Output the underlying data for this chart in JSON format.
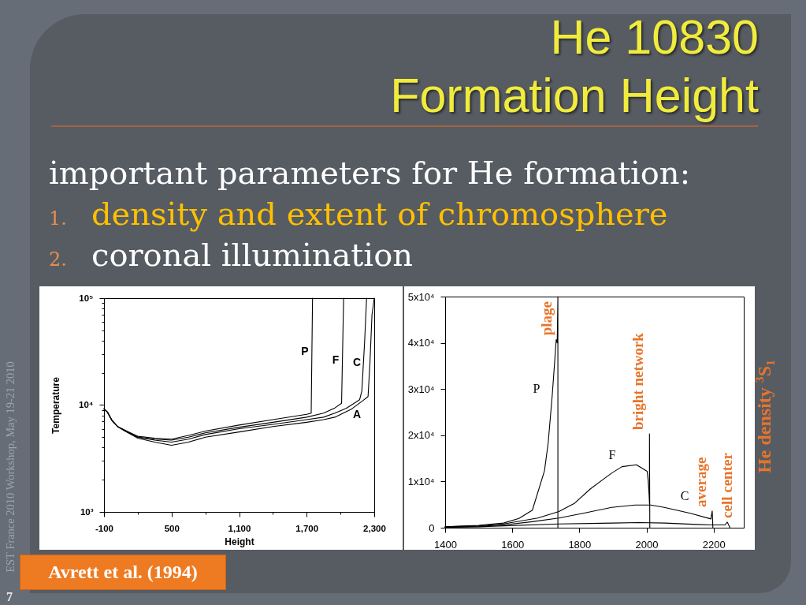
{
  "chart_data": [
    {
      "type": "other",
      "title": "He 10830 Formation Height",
      "annotations": [
        "important parameters for He formation:",
        "1. density and extent of chromosphere",
        "2. coronal illumination",
        "Avrett et al. (1994)",
        "EST France 2010 Workshop, May 19-21 2010",
        "7"
      ]
    },
    {
      "type": "line",
      "xlabel": "Height",
      "ylabel": "Temperature",
      "log": "y",
      "xlim": [
        -100,
        2300
      ],
      "ylim": [
        1000,
        100000
      ],
      "xticks": [
        -100,
        {
          "value": 200,
          "label": null
        },
        500,
        {
          "value": 800,
          "label": null
        },
        {
          "value": 1100,
          "label": "1,100"
        },
        {
          "value": 1400,
          "label": null
        },
        {
          "value": 1700,
          "label": "1,700"
        },
        {
          "value": 2000,
          "label": null
        },
        {
          "value": 2300,
          "label": "2,300"
        }
      ],
      "yticks": [
        {
          "value": 1000,
          "label": "10³"
        },
        {
          "value": 2000,
          "label": null
        },
        {
          "value": 3000,
          "label": null
        },
        {
          "value": 4000,
          "label": null
        },
        {
          "value": 5000,
          "label": null
        },
        {
          "value": 6000,
          "label": null
        },
        {
          "value": 7000,
          "label": null
        },
        {
          "value": 8000,
          "label": null
        },
        {
          "value": 9000,
          "label": null
        },
        {
          "value": 10000,
          "label": "10⁴"
        },
        {
          "value": 20000,
          "label": null
        },
        {
          "value": 30000,
          "label": null
        },
        {
          "value": 40000,
          "label": null
        },
        {
          "value": 50000,
          "label": null
        },
        {
          "value": 60000,
          "label": null
        },
        {
          "value": 70000,
          "label": null
        },
        {
          "value": 80000,
          "label": null
        },
        {
          "value": 90000,
          "label": null
        },
        {
          "value": 100000,
          "label": "10⁵"
        }
      ],
      "series": [
        {
          "name": "P",
          "color": "#000000",
          "x": [
            -100,
            -70,
            -30,
            20,
            100,
            200,
            350,
            500,
            650,
            800,
            1100,
            1400,
            1700,
            1740,
            1752
          ],
          "values": [
            9200,
            8600,
            7200,
            6300,
            5700,
            5100,
            4900,
            4800,
            5200,
            5700,
            6500,
            7300,
            8200,
            8400,
            100000
          ]
        },
        {
          "name": "F",
          "color": "#000000",
          "x": [
            -100,
            -70,
            -30,
            20,
            100,
            200,
            350,
            500,
            650,
            800,
            1100,
            1400,
            1700,
            1850,
            1950,
            2010,
            2028
          ],
          "values": [
            9200,
            8600,
            7200,
            6300,
            5700,
            5000,
            4800,
            4700,
            5000,
            5500,
            6200,
            6900,
            7700,
            8400,
            9400,
            10400,
            100000
          ]
        },
        {
          "name": "C",
          "color": "#000000",
          "x": [
            -100,
            -70,
            -30,
            20,
            100,
            200,
            350,
            500,
            650,
            800,
            1100,
            1400,
            1700,
            1850,
            1950,
            2050,
            2170,
            2190,
            2215,
            2232
          ],
          "values": [
            9200,
            8600,
            7200,
            6300,
            5600,
            5000,
            4700,
            4500,
            4800,
            5300,
            6000,
            6600,
            7300,
            7700,
            8400,
            9300,
            11200,
            13600,
            40000,
            100000
          ]
        },
        {
          "name": "A",
          "color": "#000000",
          "x": [
            -100,
            -70,
            -30,
            20,
            100,
            200,
            350,
            500,
            650,
            800,
            1100,
            1400,
            1700,
            1850,
            1950,
            2100,
            2195,
            2245,
            2262,
            2280,
            2300
          ],
          "values": [
            9200,
            8600,
            7200,
            6300,
            5600,
            4900,
            4500,
            4200,
            4500,
            5000,
            5600,
            6300,
            6900,
            7300,
            7700,
            9200,
            10900,
            12000,
            25000,
            70000,
            100000
          ]
        }
      ]
    },
    {
      "type": "line",
      "ylabel": "He density $^{3}$S$_{1}$",
      "xlim": [
        1400,
        2290
      ],
      "ylim": [
        0,
        50000
      ],
      "xticks": [
        1400,
        1600,
        1800,
        2000,
        2200
      ],
      "yticks": [
        0,
        {
          "value": 10000,
          "label": "1x10⁴"
        },
        {
          "value": 20000,
          "label": "2x10⁴"
        },
        {
          "value": 30000,
          "label": "3x10⁴"
        },
        {
          "value": 40000,
          "label": "4x10⁴"
        },
        {
          "value": 50000,
          "label": "5x10⁴"
        }
      ],
      "series": [
        {
          "name": "plage",
          "color": "#000000",
          "x": [
            1400,
            1500,
            1574,
            1620,
            1660,
            1696,
            1707,
            1719,
            1727,
            1731,
            1734,
            1736,
            1736
          ],
          "values": [
            200,
            500,
            1000,
            2000,
            3800,
            12300,
            18300,
            28500,
            36500,
            40700,
            40000,
            50000,
            0
          ]
        },
        {
          "name": "bright network",
          "color": "#000000",
          "x": [
            1400,
            1500,
            1574,
            1676,
            1739,
            1786,
            1833,
            1896,
            1927,
            1970,
            2002,
            2005,
            2008,
            2009,
            2009,
            2010
          ],
          "values": [
            200,
            400,
            800,
            2100,
            3500,
            5300,
            8400,
            11800,
            13200,
            13600,
            12200,
            10300,
            6900,
            5200,
            20300,
            0
          ]
        },
        {
          "name": "average",
          "color": "#000000",
          "x": [
            1400,
            1500,
            1574,
            1660,
            1739,
            1817,
            1896,
            1966,
            2013,
            2053,
            2131,
            2192,
            2196,
            2198
          ],
          "values": [
            100,
            300,
            600,
            1300,
            2100,
            3200,
            4400,
            4900,
            4900,
            4400,
            3100,
            1900,
            3600,
            0
          ]
        },
        {
          "name": "cell center",
          "color": "#000000",
          "x": [
            1400,
            1500,
            1574,
            1739,
            1900,
            1976,
            2055,
            2150,
            2194,
            2234,
            2241,
            2249
          ],
          "values": [
            100,
            200,
            400,
            800,
            1000,
            1100,
            1000,
            700,
            600,
            600,
            1200,
            0
          ]
        }
      ],
      "annotations": [
        "P",
        "F",
        "C"
      ]
    }
  ]
}
